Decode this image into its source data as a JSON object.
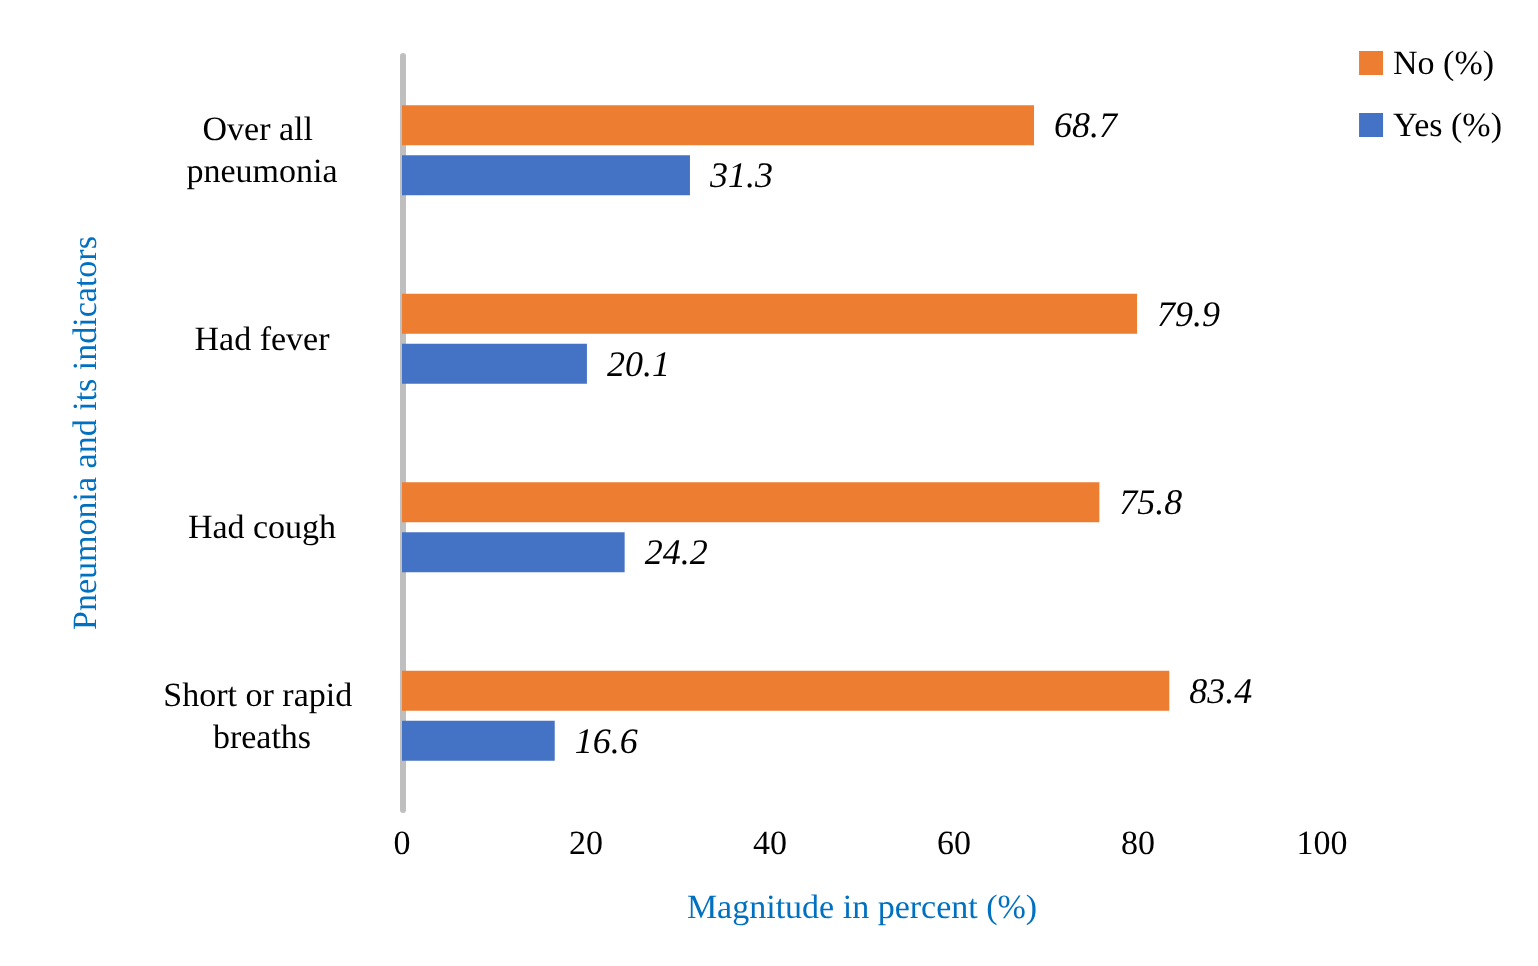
{
  "chart_data": {
    "type": "bar",
    "orientation": "horizontal",
    "xlabel": "Magnitude in percent (%)",
    "ylabel": "Pneumonia and its indicators",
    "categories": [
      "Over all pneumonia",
      "Had fever",
      "Had cough",
      "Short or rapid breaths"
    ],
    "series": [
      {
        "name": "No (%)",
        "color": "#ed7d31",
        "values": [
          68.7,
          79.9,
          75.8,
          83.4
        ]
      },
      {
        "name": "Yes (%)",
        "color": "#4472c4",
        "values": [
          31.3,
          20.1,
          24.2,
          16.6
        ]
      }
    ],
    "xlim": [
      0,
      100
    ],
    "xticks": [
      0,
      20,
      40,
      60,
      80,
      100
    ],
    "grid": false,
    "legend": "top right",
    "data_labels": true
  }
}
